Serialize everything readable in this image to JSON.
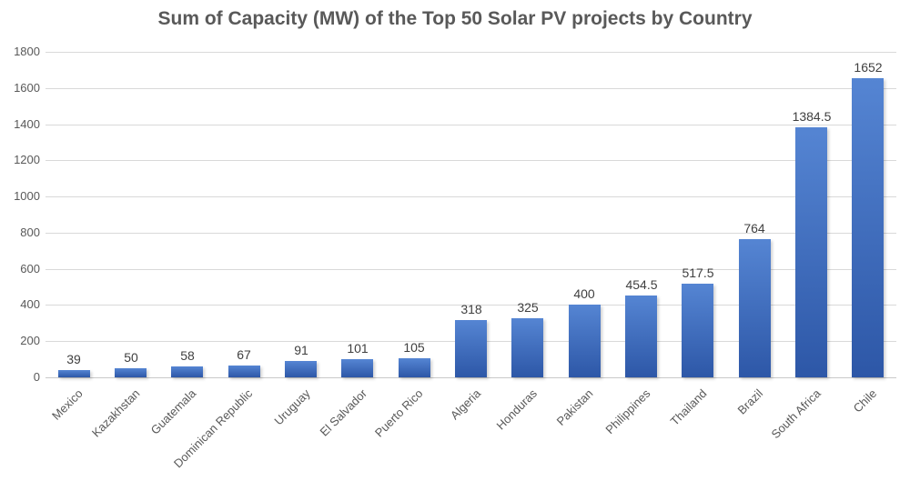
{
  "chart_data": {
    "type": "bar",
    "title": "Sum of Capacity (MW) of the Top 50 Solar PV projects by Country",
    "categories": [
      "Mexico",
      "Kazakhstan",
      "Guatemala",
      "Dominican Republic",
      "Uruguay",
      "El Salvador",
      "Puerto Rico",
      "Algeria",
      "Honduras",
      "Pakistan",
      "Philippines",
      "Thailand",
      "Brazil",
      "South Africa",
      "Chile"
    ],
    "values": [
      39,
      50,
      58,
      67,
      91,
      101,
      105,
      318,
      325,
      400,
      454.5,
      517.5,
      764,
      1384.5,
      1652
    ],
    "data_labels": [
      "39",
      "50",
      "58",
      "67",
      "91",
      "101",
      "105",
      "318",
      "325",
      "400",
      "454.5",
      "517.5",
      "764",
      "1384.5",
      "1652"
    ],
    "ytick_labels": [
      "0",
      "200",
      "400",
      "600",
      "800",
      "1000",
      "1200",
      "1400",
      "1600",
      "1800"
    ],
    "xlabel": "",
    "ylabel": "",
    "ylim": [
      0,
      1800
    ],
    "ytick_step": 200,
    "grid": true,
    "legend": false,
    "category_label_rotation_deg": 45,
    "colors": {
      "background": "#ffffff",
      "bar_gradient_top": "#5585d3",
      "bar_gradient_bottom": "#2d57a7",
      "gridline": "#d9d9d9",
      "axis_line": "#c9c9c9",
      "title_text": "#595959",
      "tick_text": "#595959",
      "data_label_text": "#404040"
    }
  }
}
